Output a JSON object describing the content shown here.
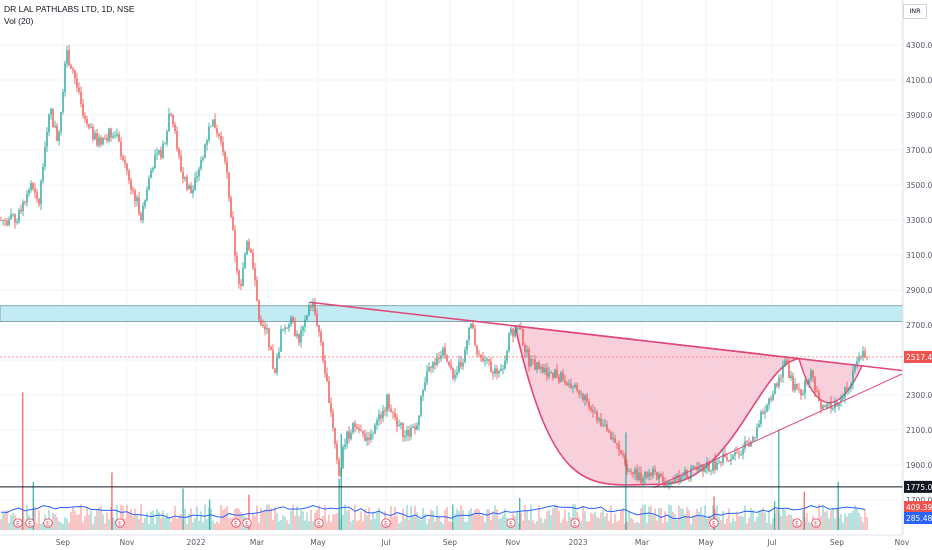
{
  "header": {
    "title": "DR LAL PATHLABS LTD, 1D, NSE",
    "indicator": "Vol (20)"
  },
  "currency": "INR",
  "colors": {
    "up": "#26a69a",
    "down": "#ef5350",
    "pattern": "#e0487a",
    "patternFill": "#f7c8d6",
    "zone": "#c3ebf3",
    "volMA": "#2962ff",
    "grid": "#f0f3fa"
  },
  "price_badges": {
    "last": "2517.40",
    "support": "1775.00",
    "vol_main": "409.39K",
    "vol_ma": "285.48K"
  },
  "chart_data": {
    "type": "candlestick",
    "title": "DR LAL PATHLABS LTD, 1D, NSE",
    "y_ticks": [
      "4300.00",
      "4100.00",
      "3900.00",
      "3700.00",
      "3500.00",
      "3300.00",
      "3100.00",
      "2900.00",
      "2700.00",
      "2500.00",
      "2300.00",
      "2100.00",
      "1900.00",
      "1700.00"
    ],
    "x_ticks": [
      "Sep",
      "Nov",
      "2022",
      "Mar",
      "May",
      "Jul",
      "Sep",
      "Nov",
      "2023",
      "Mar",
      "May",
      "Jul",
      "Sep",
      "Nov"
    ],
    "ylim": [
      1625,
      4550
    ],
    "path": [
      [
        "2021-07-20",
        3300
      ],
      [
        "2021-08-02",
        3500
      ],
      [
        "2021-08-10",
        3380
      ],
      [
        "2021-08-20",
        3950
      ],
      [
        "2021-08-28",
        3750
      ],
      [
        "2021-09-05",
        4250
      ],
      [
        "2021-09-12",
        4150
      ],
      [
        "2021-09-22",
        3850
      ],
      [
        "2021-10-05",
        3740
      ],
      [
        "2021-10-20",
        3820
      ],
      [
        "2021-11-05",
        3500
      ],
      [
        "2021-11-15",
        3320
      ],
      [
        "2021-11-25",
        3620
      ],
      [
        "2021-12-05",
        3700
      ],
      [
        "2021-12-12",
        3950
      ],
      [
        "2021-12-22",
        3580
      ],
      [
        "2022-01-01",
        3450
      ],
      [
        "2022-01-10",
        3640
      ],
      [
        "2022-01-20",
        3880
      ],
      [
        "2022-01-26",
        3800
      ],
      [
        "2022-02-02",
        3650
      ],
      [
        "2022-02-10",
        3150
      ],
      [
        "2022-02-16",
        2870
      ],
      [
        "2022-02-22",
        3200
      ],
      [
        "2022-02-28",
        3050
      ],
      [
        "2022-03-06",
        2700
      ],
      [
        "2022-03-14",
        2650
      ],
      [
        "2022-03-20",
        2380
      ],
      [
        "2022-03-26",
        2650
      ],
      [
        "2022-04-04",
        2720
      ],
      [
        "2022-04-12",
        2620
      ],
      [
        "2022-04-18",
        2700
      ],
      [
        "2022-04-24",
        2840
      ],
      [
        "2022-04-30",
        2700
      ],
      [
        "2022-05-06",
        2450
      ],
      [
        "2022-05-12",
        2230
      ],
      [
        "2022-05-20",
        1850
      ],
      [
        "2022-05-26",
        2050
      ],
      [
        "2022-06-04",
        2130
      ],
      [
        "2022-06-14",
        2050
      ],
      [
        "2022-06-24",
        2120
      ],
      [
        "2022-07-04",
        2270
      ],
      [
        "2022-07-12",
        2150
      ],
      [
        "2022-07-22",
        2070
      ],
      [
        "2022-08-01",
        2150
      ],
      [
        "2022-08-10",
        2400
      ],
      [
        "2022-08-20",
        2520
      ],
      [
        "2022-08-28",
        2550
      ],
      [
        "2022-09-04",
        2420
      ],
      [
        "2022-09-14",
        2500
      ],
      [
        "2022-09-20",
        2740
      ],
      [
        "2022-09-28",
        2500
      ],
      [
        "2022-10-08",
        2480
      ],
      [
        "2022-10-18",
        2400
      ],
      [
        "2022-10-28",
        2650
      ],
      [
        "2022-11-05",
        2700
      ],
      [
        "2022-11-14",
        2500
      ],
      [
        "2022-11-24",
        2450
      ],
      [
        "2022-12-08",
        2430
      ],
      [
        "2022-12-20",
        2380
      ],
      [
        "2023-01-04",
        2300
      ],
      [
        "2023-01-18",
        2180
      ],
      [
        "2023-02-01",
        2050
      ],
      [
        "2023-02-14",
        1900
      ],
      [
        "2023-02-28",
        1830
      ],
      [
        "2023-03-12",
        1850
      ],
      [
        "2023-03-24",
        1790
      ],
      [
        "2023-04-08",
        1850
      ],
      [
        "2023-04-22",
        1860
      ],
      [
        "2023-05-06",
        1900
      ],
      [
        "2023-05-20",
        1940
      ],
      [
        "2023-06-02",
        1980
      ],
      [
        "2023-06-14",
        2050
      ],
      [
        "2023-06-26",
        2250
      ],
      [
        "2023-07-06",
        2370
      ],
      [
        "2023-07-14",
        2480
      ],
      [
        "2023-07-22",
        2350
      ],
      [
        "2023-07-30",
        2320
      ],
      [
        "2023-08-08",
        2420
      ],
      [
        "2023-08-14",
        2260
      ],
      [
        "2023-08-22",
        2240
      ],
      [
        "2023-09-01",
        2230
      ],
      [
        "2023-09-08",
        2330
      ],
      [
        "2023-09-15",
        2400
      ],
      [
        "2023-09-20",
        2520
      ]
    ],
    "horizontal_lines": [
      {
        "price": 1775,
        "label": "1775.00",
        "color": "#131722"
      }
    ],
    "zones": [
      {
        "from": 2720,
        "to": 2810,
        "color": "#c3ebf3"
      }
    ],
    "trendlines": [
      {
        "from": [
          "2022-04-22",
          2830
        ],
        "to": [
          "2023-11-01",
          2440
        ],
        "color": "#e0487a"
      },
      {
        "from": [
          "2023-03-12",
          1770
        ],
        "to": [
          "2023-11-01",
          2420
        ],
        "color": "#e0487a"
      }
    ],
    "volume_spikes": [
      [
        "2021-07-26",
        8.6
      ],
      [
        "2021-08-05",
        3.0
      ],
      [
        "2021-10-18",
        3.6
      ],
      [
        "2021-12-24",
        2.6
      ],
      [
        "2022-01-18",
        1.9
      ],
      [
        "2022-02-24",
        2.2
      ],
      [
        "2022-05-20",
        3.2
      ],
      [
        "2022-05-22",
        6.0
      ],
      [
        "2022-09-04",
        1.6
      ],
      [
        "2022-11-06",
        2.0
      ],
      [
        "2023-02-14",
        6.1
      ],
      [
        "2023-05-08",
        2.1
      ],
      [
        "2023-07-04",
        1.8
      ],
      [
        "2023-07-08",
        6.3
      ],
      [
        "2023-08-01",
        2.4
      ],
      [
        "2023-09-02",
        3.0
      ]
    ]
  }
}
